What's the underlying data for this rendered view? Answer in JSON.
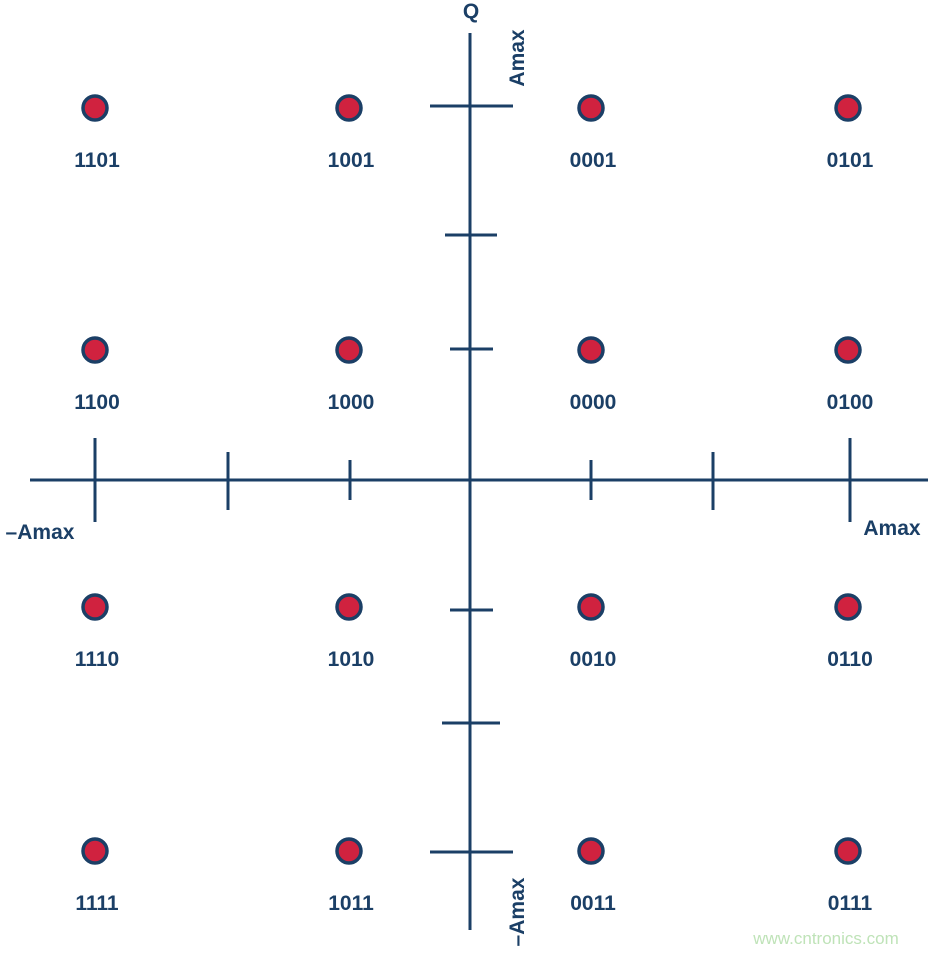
{
  "chart_data": {
    "type": "scatter",
    "title": "",
    "axis_labels": {
      "q_axis": "Q",
      "q_max": "Amax",
      "q_min": "–Amax",
      "i_max": "Amax",
      "i_min": "–Amax"
    },
    "levels": [
      -3,
      -1,
      1,
      3
    ],
    "points": [
      {
        "i": -3,
        "q": 3,
        "label": "1101"
      },
      {
        "i": -1,
        "q": 3,
        "label": "1001"
      },
      {
        "i": 1,
        "q": 3,
        "label": "0001"
      },
      {
        "i": 3,
        "q": 3,
        "label": "0101"
      },
      {
        "i": -3,
        "q": 1,
        "label": "1100"
      },
      {
        "i": -1,
        "q": 1,
        "label": "1000"
      },
      {
        "i": 1,
        "q": 1,
        "label": "0000"
      },
      {
        "i": 3,
        "q": 1,
        "label": "0100"
      },
      {
        "i": -3,
        "q": -1,
        "label": "1110"
      },
      {
        "i": -1,
        "q": -1,
        "label": "1010"
      },
      {
        "i": 1,
        "q": -1,
        "label": "0010"
      },
      {
        "i": 3,
        "q": -1,
        "label": "0110"
      },
      {
        "i": -3,
        "q": -3,
        "label": "1111"
      },
      {
        "i": -1,
        "q": -3,
        "label": "1011"
      },
      {
        "i": 1,
        "q": -3,
        "label": "0011"
      },
      {
        "i": 3,
        "q": -3,
        "label": "0111"
      }
    ],
    "colors": {
      "axis": "#1b3f66",
      "point_fill": "#d0223f",
      "point_stroke": "#1b3f66"
    }
  },
  "watermark": "www.cntronics.com"
}
